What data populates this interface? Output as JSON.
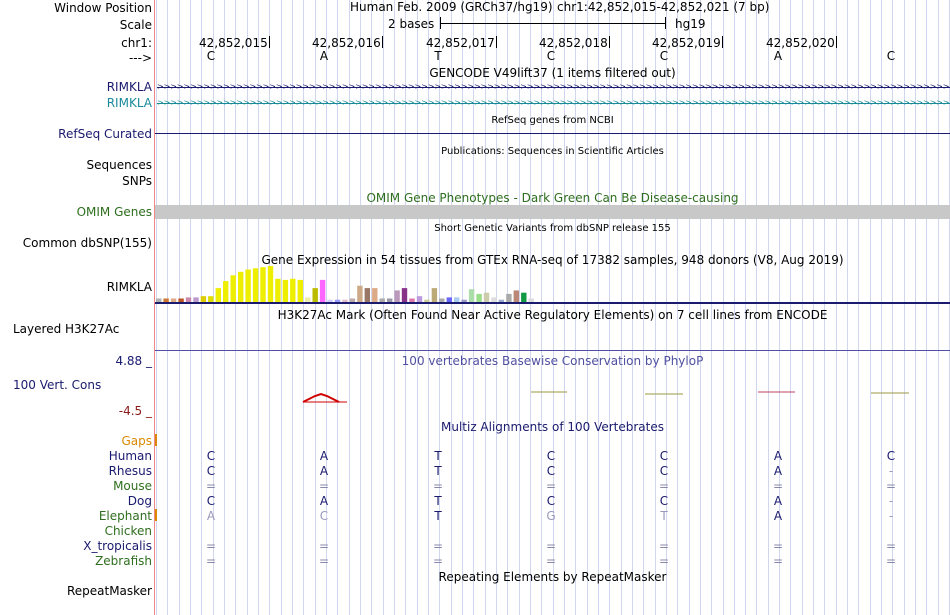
{
  "colors": {
    "navy": "#1a1a6e",
    "teal": "#1a8a9a",
    "darkgreen": "#2e6e1e",
    "orange": "#d98a00",
    "maroon": "#8b1a1a",
    "omim_band": "#c8c8c8",
    "cons_purple": "#5050a0"
  },
  "labels": {
    "window_position": "Window Position",
    "scale": "Scale",
    "chr": "chr1:",
    "arrow": "--->",
    "rimkla_1": "RIMKLA",
    "rimkla_2": "RIMKLA",
    "refseq": "RefSeq Curated",
    "sequences": "Sequences",
    "snps": "SNPs",
    "omim": "OMIM Genes",
    "common_dbsnp": "Common dbSNP(155)",
    "gtex_gene": "RIMKLA",
    "layered": "Layered H3K27Ac",
    "cons_max": "4.88 _",
    "cons_label": "100 Vert. Cons",
    "cons_min": "-4.5 _",
    "gaps": "Gaps",
    "human": "Human",
    "rhesus": "Rhesus",
    "mouse": "Mouse",
    "dog": "Dog",
    "elephant": "Elephant",
    "chicken": "Chicken",
    "xtrop": "X_tropicalis",
    "zebrafish": "Zebrafish",
    "repeatmasker": "RepeatMasker"
  },
  "header": {
    "assembly": "Human Feb. 2009 (GRCh37/hg19)",
    "position": "chr1:42,852,015-42,852,021 (7 bp)",
    "scale_text": "2 bases",
    "scale_db": "hg19"
  },
  "coords": [
    "42,852,015",
    "42,852,016",
    "42,852,017",
    "42,852,018",
    "42,852,019",
    "42,852,020"
  ],
  "bases": [
    "C",
    "A",
    "T",
    "C",
    "C",
    "A",
    "C"
  ],
  "tracks": {
    "gencode": "GENCODE V49lift37 (1 items filtered out)",
    "refseq_desc": "RefSeq genes from NCBI",
    "pubs": "Publications: Sequences in Scientific Articles",
    "omim_desc": "OMIM Gene Phenotypes - Dark Green Can Be Disease-causing",
    "dbsnp_desc": "Short Genetic Variants from dbSNP release 155",
    "gtex_desc": "Gene Expression in 54 tissues from GTEx RNA-seq of 17382 samples, 948 donors (V8, Aug 2019)",
    "h3k27_desc": "H3K27Ac Mark (Often Found Near Active Regulatory Elements) on 7 cell lines from ENCODE",
    "cons_desc": "100 vertebrates Basewise Conservation by PhyloP",
    "multiz_desc": "Multiz Alignments of 100 Vertebrates",
    "repeat_desc": "Repeating Elements by RepeatMasker"
  },
  "alignment": {
    "human": [
      "C",
      "A",
      "T",
      "C",
      "C",
      "A",
      "C"
    ],
    "rhesus": [
      "C",
      "A",
      "T",
      "C",
      "C",
      "A",
      "-"
    ],
    "mouse": [
      "=",
      "=",
      "=",
      "=",
      "=",
      "=",
      "="
    ],
    "dog": [
      "C",
      "A",
      "T",
      "C",
      "C",
      "A",
      "-"
    ],
    "elephant": [
      "A",
      "C",
      "T",
      "G",
      "T",
      "A",
      "-"
    ],
    "xtrop": [
      "=",
      "=",
      "=",
      "=",
      "=",
      "=",
      "="
    ],
    "zebrafish": [
      "=",
      "=",
      "=",
      "=",
      "=",
      "=",
      "="
    ]
  },
  "gtex": {
    "values": [
      3,
      3,
      3,
      3,
      4,
      4,
      5,
      5,
      12,
      18,
      23,
      26,
      28,
      29,
      30,
      31,
      20,
      19,
      20,
      19,
      4,
      12,
      19,
      2,
      2,
      2,
      3,
      14,
      12,
      12,
      3,
      3,
      10,
      12,
      3,
      5,
      2,
      12,
      3,
      4,
      4,
      2,
      11,
      7,
      8,
      4,
      2,
      7,
      10,
      8,
      3
    ],
    "colors": [
      "#b0b0b0",
      "#cc7733",
      "#ddaa88",
      "#bb5522",
      "#cc88aa",
      "#bb99cc",
      "#ddcc00",
      "#dddd00",
      "#eeee00",
      "#eeee00",
      "#eeee00",
      "#eeee00",
      "#eeee00",
      "#eeee00",
      "#eeee00",
      "#eeee00",
      "#eeee00",
      "#eeee00",
      "#eeee00",
      "#eeee00",
      "#eeeeaa",
      "#bbbb00",
      "#ff66ff",
      "#ccccff",
      "#9999ff",
      "#ddbbcc",
      "#bbaaaa",
      "#ccaa88",
      "#997766",
      "#ddaa88",
      "#aaaaaa",
      "#9999aa",
      "#bb99bb",
      "#883388",
      "#dd77aa",
      "#bb99dd",
      "#cccc99",
      "#bbaa77",
      "#aaaaaa",
      "#6666ff",
      "#aaccee",
      "#9999cc",
      "#aaddaa",
      "#99dd88",
      "#ccccaa",
      "#dddddd",
      "#99aacc",
      "#aaaaaa",
      "#bb8877",
      "#119944",
      "#dddddd"
    ]
  }
}
